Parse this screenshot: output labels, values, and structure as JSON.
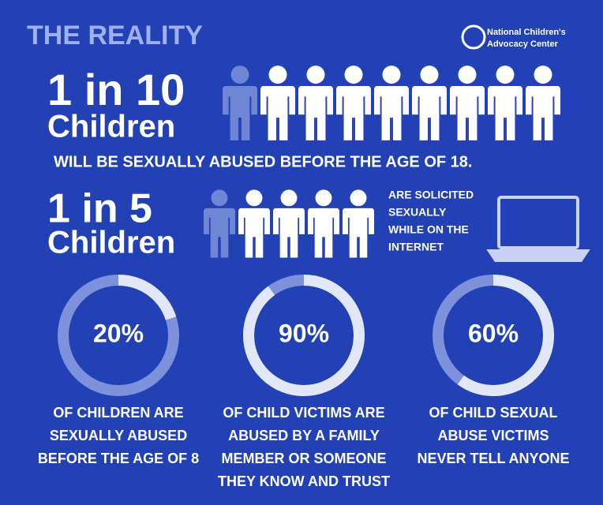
{
  "header": {
    "title": "THE REALITY",
    "logo": [
      "National Children's",
      "Advocacy Center"
    ]
  },
  "stats": [
    {
      "number": "1 in 10",
      "noun": "Children",
      "caption": [
        "WILL BE SEXUALLY ABUSED BEFORE THE AGE OF 18."
      ]
    },
    {
      "number": "1 in 5",
      "noun": "Children",
      "caption": [
        "ARE SOLICITED",
        "SEXUALLY",
        "WHILE ON THE",
        "INTERNET"
      ]
    }
  ],
  "rings": [
    {
      "value": 20,
      "label": "20%",
      "caption": [
        "OF CHILDREN ARE",
        "SEXUALLY ABUSED",
        "BEFORE THE AGE OF 8"
      ]
    },
    {
      "value": 90,
      "label": "90%",
      "caption": [
        "OF CHILD VICTIMS ARE",
        "ABUSED BY A FAMILY",
        "MEMBER OR SOMEONE",
        "THEY KNOW AND TRUST"
      ]
    },
    {
      "value": 60,
      "label": "60%",
      "caption": [
        "OF CHILD SEXUAL",
        "ABUSE VICTIMS",
        "NEVER TELL ANYONE"
      ]
    }
  ]
}
